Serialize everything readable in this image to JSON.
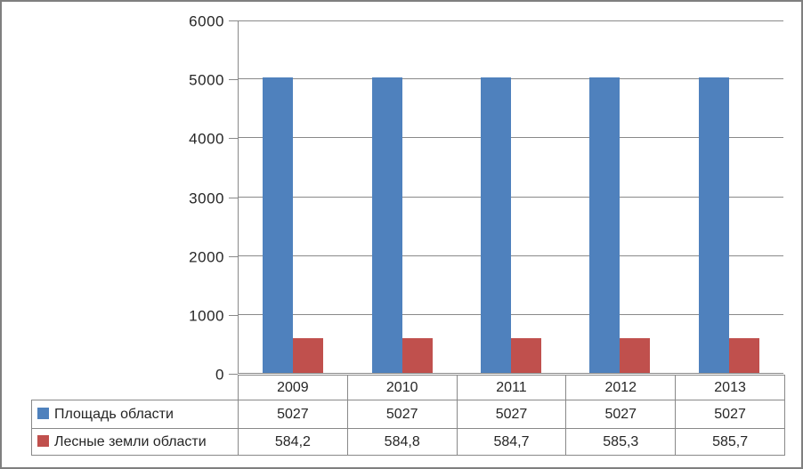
{
  "colors": {
    "series1": "#4f81bd",
    "series2": "#c0504d",
    "gridline": "#898989",
    "frame_border": "#7f7f7f",
    "text": "#262626"
  },
  "chart_data": {
    "type": "bar",
    "title": "",
    "xlabel": "",
    "ylabel": "",
    "categories": [
      "2009",
      "2010",
      "2011",
      "2012",
      "2013"
    ],
    "series": [
      {
        "name": "Площадь области",
        "color": "#4f81bd",
        "values": [
          5027,
          5027,
          5027,
          5027,
          5027
        ],
        "display_values": [
          "5027",
          "5027",
          "5027",
          "5027",
          "5027"
        ]
      },
      {
        "name": "Лесные земли области",
        "color": "#c0504d",
        "values": [
          584.2,
          584.8,
          584.7,
          585.3,
          585.7
        ],
        "display_values": [
          "584,2",
          "584,8",
          "584,7",
          "585,3",
          "585,7"
        ]
      }
    ],
    "ylim": [
      0,
      6000
    ],
    "ytick_step": 1000,
    "ytick_labels": [
      "0",
      "1000",
      "2000",
      "3000",
      "4000",
      "5000",
      "6000"
    ],
    "grid": true,
    "legend_position": "data-table-row-headers"
  }
}
